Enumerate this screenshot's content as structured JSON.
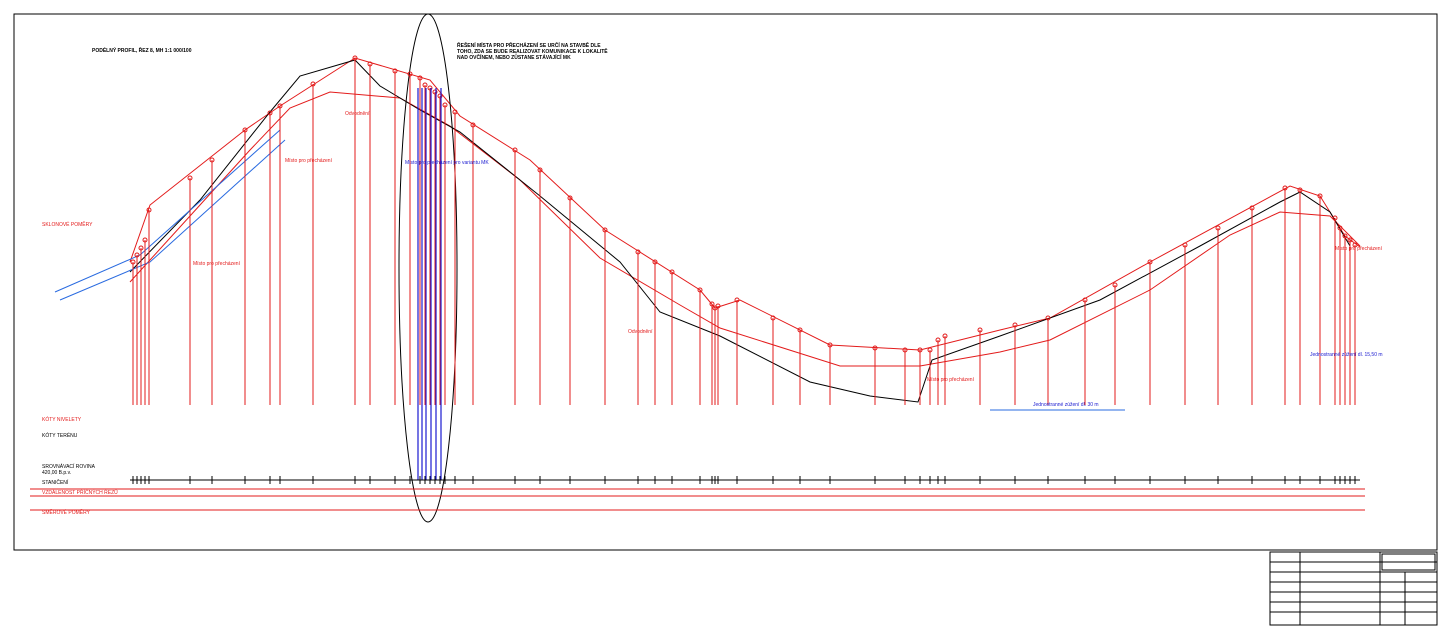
{
  "header": {
    "title": "PODÉLNÝ PROFIL, ŘEZ 8, MH 1:1 000/100"
  },
  "note": {
    "lines": [
      "ŘEŠENÍ MÍSTA PRO PŘECHÁZENÍ SE URČÍ NA STAVBĚ DLE",
      "TOHO, ZDA SE BUDE REALIZOVAT KOMUNIKACE K LOKALITĚ",
      "NAD OVČÍNEM, NEBO ZŮSTANE STÁVAJÍCÍ MK"
    ]
  },
  "bands": {
    "slope": "SKLONOVÉ POMĚRY",
    "grade_levels": "KÓTY NIVELETY",
    "terrain_levels": "KÓTY TERÉNU",
    "datum": "SROVNÁVACÍ ROVINA",
    "datum_level": "420,00 B.p.v.",
    "stationing": "STANIČENÍ",
    "section_distance": "VZDÁLENOST PŘÍČNÝCH ŘEZŮ",
    "alignment": "SMĚROVÉ POMĚRY"
  },
  "annotations": {
    "crossing": "Místo pro přecházení",
    "narrowing_1": "Jednostranné zúžení dl. 30 m",
    "narrowing_2": "Jednostranné zúžení dl. 15,50 m",
    "crossing_mk": "Místo pro přecházení pro variantu MK",
    "drainage": "Odvodnění"
  }
}
